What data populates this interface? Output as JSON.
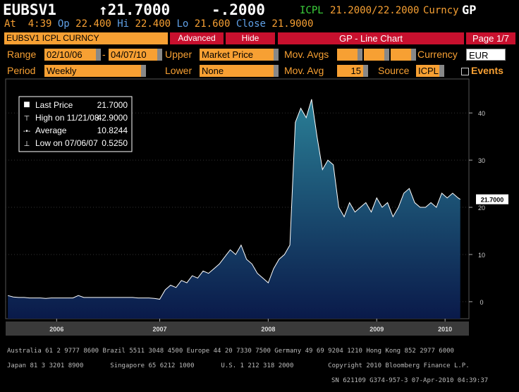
{
  "screen": {
    "ticker": "EUBSV1",
    "last": "↑21.7000",
    "change": "-.2000",
    "source": "ICPL",
    "bidask": "21.2000/22.2000",
    "market": "Curncy",
    "function": "GP",
    "quote": {
      "at_label": "At",
      "at": "4:39",
      "op_label": "Op",
      "op": "22.400",
      "hi_label": "Hi",
      "hi": "22.400",
      "lo_label": "Lo",
      "lo": "21.600",
      "close_label": "Close",
      "close": "21.9000"
    },
    "toolbar": {
      "security": "EUBSV1 ICPL CURNCY",
      "advanced": "Advanced",
      "hide": "Hide",
      "screen_title": "GP - Line Chart",
      "page": "Page 1/7"
    },
    "settings": {
      "range_label": "Range",
      "start": "02/10/06",
      "dash": "-",
      "end": "04/07/10",
      "upper_label": "Upper",
      "upper": "Market Price",
      "mov_avgs_label": "Mov. Avgs",
      "currency_label": "Currency",
      "currency": "EUR",
      "period_label": "Period",
      "period": "Weekly",
      "lower_label": "Lower",
      "lower": "None",
      "mov_avg_label": "Mov. Avg",
      "mov_avg": "15",
      "source_label": "Source",
      "source": "ICPL",
      "events": "Events"
    },
    "footer": [
      "Australia 61 2 9777 8600 Brazil 5511 3048 4500 Europe 44 20 7330 7500 Germany 49 69 9204 1210 Hong Kong 852 2977 6000",
      "Japan 81 3 3201 8900       Singapore 65 6212 1000       U.S. 1 212 318 2000         Copyright 2010 Bloomberg Finance L.P.",
      "SN 621109 G374-957-3 07-Apr-2010 04:39:37"
    ]
  },
  "chart_data": {
    "type": "line",
    "legend": [
      {
        "label": "Last Price",
        "value": "21.7000"
      },
      {
        "label": "High on 11/21/08",
        "value": "42.9000"
      },
      {
        "label": "Average",
        "value": "10.8244"
      },
      {
        "label": "Low on 07/06/07",
        "value": "0.5250"
      }
    ],
    "x": [
      2006.1,
      2006.15,
      2006.2,
      2006.25,
      2006.3,
      2006.35,
      2006.4,
      2006.45,
      2006.5,
      2006.55,
      2006.6,
      2006.65,
      2006.7,
      2006.75,
      2006.8,
      2006.85,
      2006.9,
      2006.95,
      2007.0,
      2007.05,
      2007.1,
      2007.15,
      2007.2,
      2007.25,
      2007.3,
      2007.35,
      2007.4,
      2007.45,
      2007.5,
      2007.55,
      2007.6,
      2007.65,
      2007.7,
      2007.75,
      2007.8,
      2007.85,
      2007.9,
      2007.95,
      2008.0,
      2008.05,
      2008.1,
      2008.15,
      2008.2,
      2008.25,
      2008.3,
      2008.35,
      2008.4,
      2008.45,
      2008.5,
      2008.55,
      2008.6,
      2008.65,
      2008.7,
      2008.75,
      2008.8,
      2008.85,
      2008.9,
      2008.95,
      2009.0,
      2009.05,
      2009.1,
      2009.15,
      2009.2,
      2009.25,
      2009.3,
      2009.35,
      2009.4,
      2009.45,
      2009.5,
      2009.55,
      2009.6,
      2009.65,
      2009.7,
      2009.75,
      2009.8,
      2009.85,
      2009.9,
      2009.95,
      2010.0,
      2010.05,
      2010.1,
      2010.15,
      2010.2,
      2010.25,
      2010.27
    ],
    "series": [
      {
        "name": "Last Price",
        "color": "#ffffff",
        "values": [
          1.3,
          1.0,
          0.9,
          0.9,
          0.8,
          0.8,
          0.8,
          0.7,
          0.8,
          0.8,
          0.8,
          0.8,
          0.8,
          1.3,
          0.9,
          0.9,
          0.9,
          0.9,
          0.9,
          0.9,
          0.9,
          0.9,
          0.9,
          0.9,
          0.8,
          0.8,
          0.8,
          0.7,
          0.525,
          2.5,
          3.5,
          3,
          4.5,
          4,
          5.5,
          5,
          6.5,
          6,
          7,
          8,
          9.5,
          11,
          10,
          12,
          9,
          8,
          6,
          5,
          4,
          7,
          9,
          10,
          12,
          38,
          41,
          39,
          42.9,
          35,
          28,
          30,
          29,
          20,
          18,
          21,
          19,
          20,
          21,
          19,
          22,
          20,
          21,
          18,
          20,
          23,
          24,
          21,
          20,
          20,
          21,
          20,
          23,
          22,
          23,
          22,
          21.7
        ]
      }
    ],
    "last_label": "21.7000",
    "xlim": [
      2006.08,
      2010.35
    ],
    "xticks": [
      {
        "value": 2006.55,
        "label": "2006"
      },
      {
        "value": 2007.5,
        "label": "2007"
      },
      {
        "value": 2008.5,
        "label": "2008"
      },
      {
        "value": 2009.5,
        "label": "2009"
      },
      {
        "value": 2010.13,
        "label": "2010"
      }
    ],
    "ylim": [
      -3.6,
      47.2
    ],
    "yticks": [
      0,
      10,
      20,
      30,
      40
    ],
    "grid": true
  }
}
